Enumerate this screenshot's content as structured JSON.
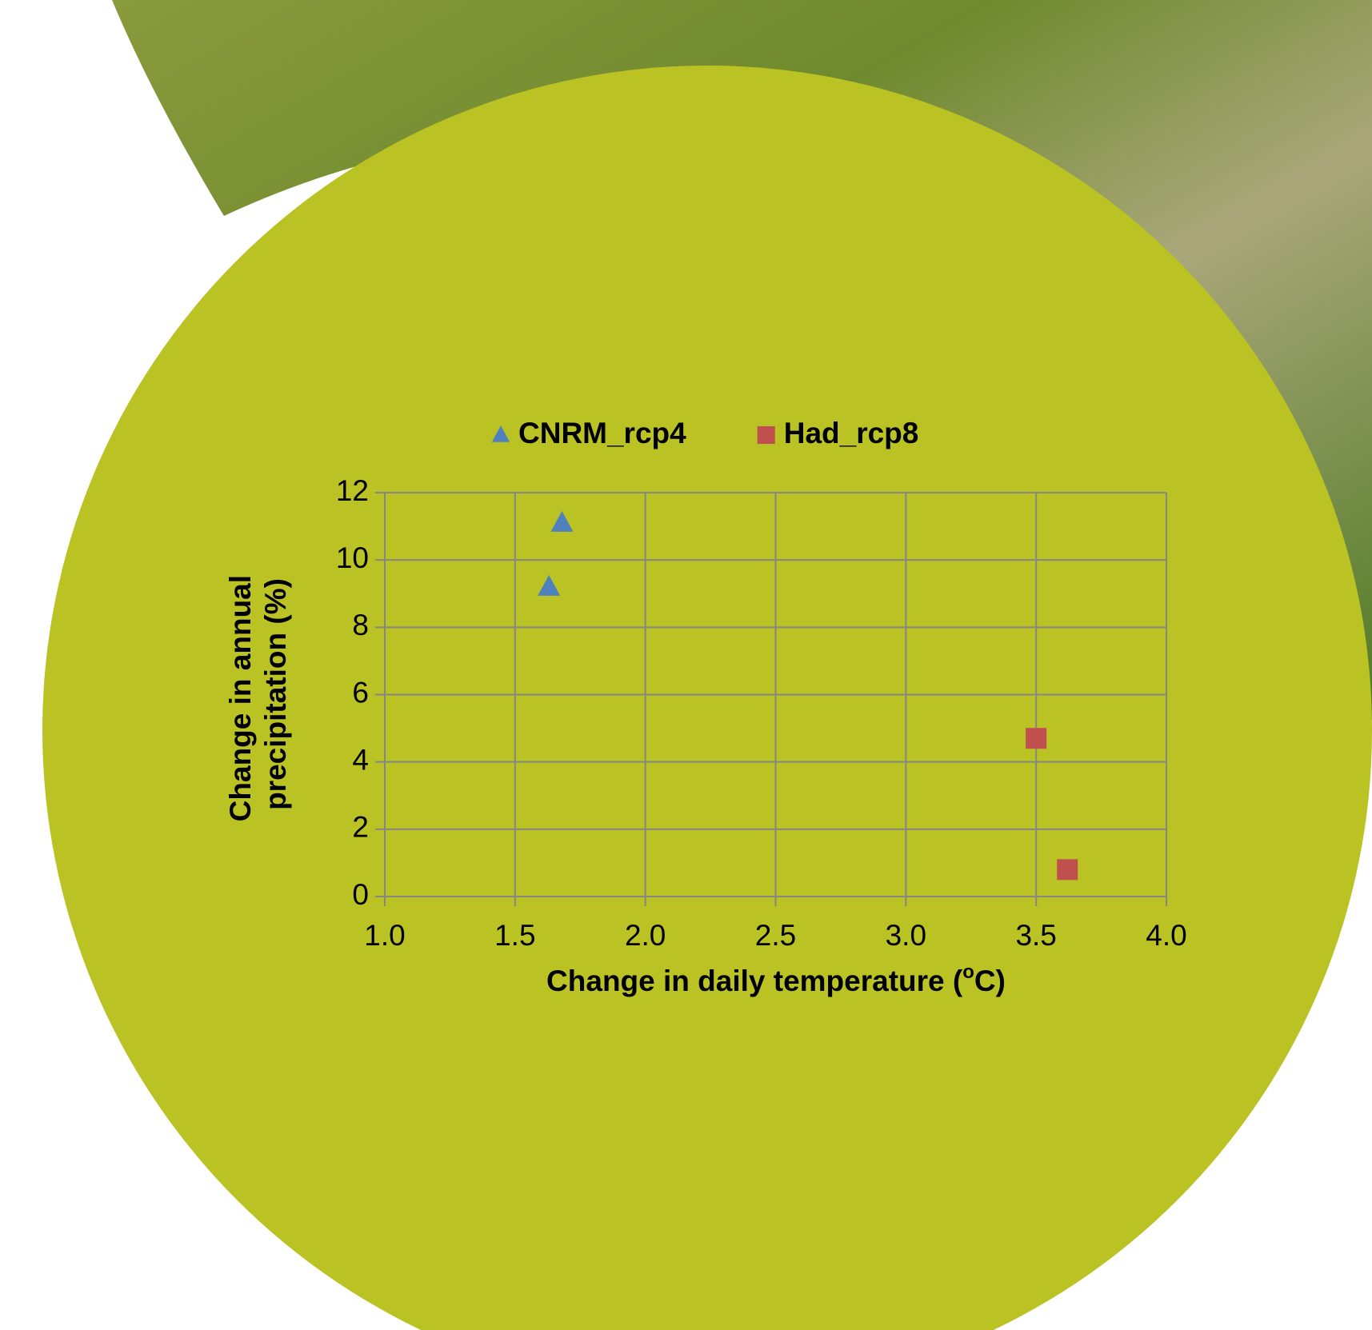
{
  "chart_data": {
    "type": "scatter",
    "xlabel": [
      "Change in daily temperature (",
      "o",
      "C)"
    ],
    "ylabel": [
      "Change in annual",
      "precipitation (%)"
    ],
    "series": [
      {
        "name": "CNRM_rcp4",
        "color": "#4f81bd",
        "marker": "triangle",
        "x": [
          1.63,
          1.68
        ],
        "values": [
          9.2,
          11.1
        ]
      },
      {
        "name": "Had_rcp8",
        "color": "#c0504d",
        "marker": "square",
        "x": [
          3.5,
          3.62
        ],
        "values": [
          4.7,
          0.8
        ]
      }
    ],
    "xlim": [
      1,
      4
    ],
    "xticks": [
      {
        "value": 1,
        "label": "1.0"
      },
      {
        "value": 1.5,
        "label": "1.5"
      },
      {
        "value": 2,
        "label": "2.0"
      },
      {
        "value": 2.5,
        "label": "2.5"
      },
      {
        "value": 3,
        "label": "3.0"
      },
      {
        "value": 3.5,
        "label": "3.5"
      },
      {
        "value": 4,
        "label": "4.0"
      }
    ],
    "ylim": [
      0,
      12
    ],
    "yticks": [
      0,
      2,
      4,
      6,
      8,
      10,
      12
    ],
    "grid": true,
    "legend": "top"
  }
}
